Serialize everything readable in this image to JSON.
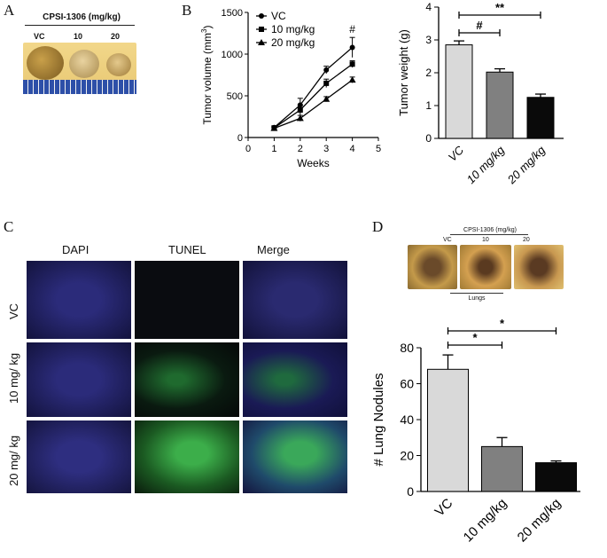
{
  "panels": {
    "A": "A",
    "B": "B",
    "C": "C",
    "D": "D"
  },
  "panel_a": {
    "title": "CPSI-1306 (mg/kg)",
    "groups": [
      "VC",
      "10",
      "20"
    ]
  },
  "panel_c": {
    "columns": [
      "DAPI",
      "TUNEL",
      "Merge"
    ],
    "rows": [
      "VC",
      "10 mg/ kg",
      "20 mg/ kg"
    ]
  },
  "panel_d_photo": {
    "title": "CPSI-1306 (mg/kg)",
    "groups": [
      "VC",
      "10",
      "20"
    ],
    "caption": "Lungs"
  },
  "colors": {
    "vc_bar": "#d9d9d9",
    "mid_bar": "#808080",
    "high_bar": "#0a0a0a",
    "dapi": "#2a2a8a",
    "tunel": "#2ea84a"
  },
  "chart_data": [
    {
      "type": "line",
      "xlabel": "Weeks",
      "ylabel_main": "Tumor volume (mm",
      "ylabel_sup": "3",
      "ylabel_close": ")",
      "xlim": [
        0,
        5
      ],
      "ylim": [
        0,
        1500
      ],
      "xticks": [
        0,
        1,
        2,
        3,
        4,
        5
      ],
      "yticks": [
        0,
        500,
        1000,
        1500
      ],
      "legend_position": "top-left",
      "annotations": [
        {
          "text": "#",
          "x": 4,
          "y": 1300
        }
      ],
      "series": [
        {
          "name": "VC",
          "marker": "circle",
          "x": [
            1,
            2,
            3,
            4
          ],
          "values": [
            120,
            390,
            810,
            1080
          ],
          "errors": [
            15,
            80,
            45,
            120
          ]
        },
        {
          "name": "10 mg/kg",
          "marker": "square",
          "x": [
            1,
            2,
            3,
            4
          ],
          "values": [
            115,
            330,
            650,
            880
          ],
          "errors": [
            12,
            60,
            50,
            40
          ]
        },
        {
          "name": "20 mg/kg",
          "marker": "triangle",
          "x": [
            1,
            2,
            3,
            4
          ],
          "values": [
            110,
            230,
            460,
            690
          ],
          "errors": [
            10,
            35,
            30,
            35
          ]
        }
      ]
    },
    {
      "type": "bar",
      "ylabel": "Tumor weight (g)",
      "ylim": [
        0,
        4
      ],
      "yticks": [
        0,
        1,
        2,
        3,
        4
      ],
      "categories": [
        "VC",
        "10 mg/kg",
        "20 mg/kg"
      ],
      "values": [
        2.85,
        2.02,
        1.25
      ],
      "errors": [
        0.12,
        0.1,
        0.1
      ],
      "significance": [
        {
          "from": 0,
          "to": 1,
          "label": "#"
        },
        {
          "from": 0,
          "to": 2,
          "label": "**"
        }
      ]
    },
    {
      "type": "bar",
      "ylabel": "# Lung Nodules",
      "ylim": [
        0,
        80
      ],
      "yticks": [
        0,
        20,
        40,
        60,
        80
      ],
      "categories": [
        "VC",
        "10 mg/kg",
        "20 mg/kg"
      ],
      "values": [
        68,
        25,
        16
      ],
      "errors": [
        8,
        5,
        1
      ],
      "significance": [
        {
          "from": 0,
          "to": 1,
          "label": "*"
        },
        {
          "from": 0,
          "to": 2,
          "label": "*"
        }
      ]
    }
  ]
}
